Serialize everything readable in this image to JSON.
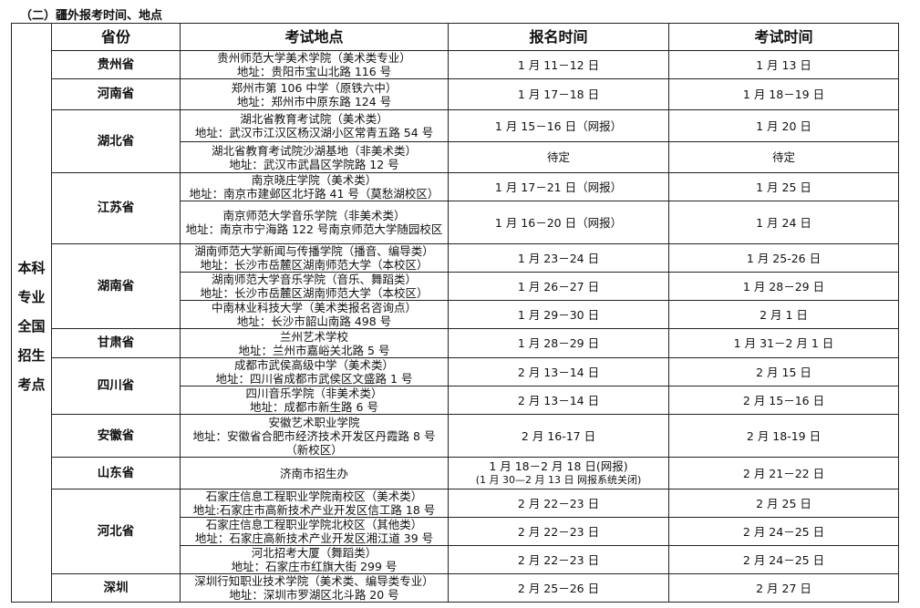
{
  "title": "（二）疆外报考时间、地点",
  "side_label": [
    "本科",
    "专业",
    "全国",
    "招生",
    "考点"
  ],
  "headers": {
    "province": "省份",
    "location": "考试地点",
    "register": "报名时间",
    "exam": "考试时间"
  },
  "regions": [
    {
      "province": "贵州省",
      "sites": [
        {
          "location": [
            "贵州师范大学美术学院（美术类专业）",
            "地址：贵阳市宝山北路 116 号"
          ],
          "register": [
            "1 月 11－12 日"
          ],
          "exam": "1 月 13 日"
        }
      ]
    },
    {
      "province": "河南省",
      "sites": [
        {
          "location": [
            "郑州市第 106 中学（原铁六中）",
            "地址：郑州市中原东路 124 号"
          ],
          "register": [
            "1 月 17－18 日"
          ],
          "exam": "1 月 18－19 日"
        }
      ]
    },
    {
      "province": "湖北省",
      "sites": [
        {
          "location": [
            "湖北省教育考试院（美术类）",
            "地址：武汉市江汉区杨汉湖小区常青五路 54 号"
          ],
          "register": [
            "1 月 15－16 日（网报）"
          ],
          "exam": "1 月 20 日"
        },
        {
          "location": [
            "湖北省教育考试院沙湖基地（非美术类）",
            "地址：武汉市武昌区学院路 12 号"
          ],
          "register": [
            "待定"
          ],
          "exam": "待定"
        }
      ]
    },
    {
      "province": "江苏省",
      "sites": [
        {
          "location": [
            "南京晓庄学院（美术类）",
            "地址：南京市建邺区北圩路 41 号（莫愁湖校区）"
          ],
          "register": [
            "1 月 17－21 日（网报）"
          ],
          "exam": "1 月 25 日"
        },
        {
          "location": [
            "南京师范大学音乐学院（非美术类）",
            "地址：南京市宁海路 122 号南京师范大学随园校区"
          ],
          "register": [
            "1 月 16－20 日（网报）"
          ],
          "exam": "1 月 24 日"
        }
      ]
    },
    {
      "province": "湖南省",
      "sites": [
        {
          "location": [
            "湖南师范大学新闻与传播学院（播音、编导类）",
            "地址：长沙市岳麓区湖南师范大学（本校区）"
          ],
          "register": [
            "1 月 23－24 日"
          ],
          "exam": "1 月 25-26 日"
        },
        {
          "location": [
            "湖南师范大学音乐学院（音乐、舞蹈类）",
            "地址：长沙市岳麓区湖南师范大学（本校区）"
          ],
          "register": [
            "1 月 26－27 日"
          ],
          "exam": "1 月 28－29 日"
        },
        {
          "location": [
            "中南林业科技大学（美术类报名咨询点）",
            "地址：长沙市韶山南路 498 号"
          ],
          "register": [
            "1 月 29－30 日"
          ],
          "exam": "2 月 1 日"
        }
      ]
    },
    {
      "province": "甘肃省",
      "sites": [
        {
          "location": [
            "兰州艺术学校",
            "地址：兰州市嘉峪关北路 5 号"
          ],
          "register": [
            "1 月 28－29 日"
          ],
          "exam": "1 月 31－2 月 1 日"
        }
      ]
    },
    {
      "province": "四川省",
      "sites": [
        {
          "location": [
            "成都市武侯高级中学（美术类）",
            "地址：四川省成都市武侯区文盛路 1 号"
          ],
          "register": [
            "2 月 13－14 日"
          ],
          "exam": "2 月 15 日"
        },
        {
          "location": [
            "四川音乐学院（非美术类）",
            "地址：成都市新生路 6 号"
          ],
          "register": [
            "2 月 13－14 日"
          ],
          "exam": "2 月 15－16 日"
        }
      ]
    },
    {
      "province": "安徽省",
      "sites": [
        {
          "location": [
            "安徽艺术职业学院",
            "地址：安徽省合肥市经济技术开发区丹霞路 8 号（新校区）"
          ],
          "register": [
            "2 月 16-17 日"
          ],
          "exam": "2 月 18-19 日"
        }
      ]
    },
    {
      "province": "山东省",
      "sites": [
        {
          "location": [
            "济南市招生办"
          ],
          "register": [
            "1 月 18－2 月 18 日(网报)",
            "(1 月 30—2 月 13 日 网报系统关闭)"
          ],
          "exam": "2 月 21－22 日"
        }
      ]
    },
    {
      "province": "河北省",
      "sites": [
        {
          "location": [
            "石家庄信息工程职业学院南校区（美术类）",
            "地址:石家庄市高新技术产业开发区信工路 18 号"
          ],
          "register": [
            "2 月 22－23 日"
          ],
          "exam": "2 月 25 日"
        },
        {
          "location": [
            "石家庄信息工程职业学院北校区（其他类）",
            "地址：石家庄高新技术产业开发区湘江道 39 号"
          ],
          "register": [
            "2 月 22－23 日"
          ],
          "exam": "2 月 24－25 日"
        },
        {
          "location": [
            "河北招考大厦（舞蹈类）",
            "地址：石家庄市红旗大街 299 号"
          ],
          "register": [
            "2 月 22－23 日"
          ],
          "exam": "2 月 24－25 日"
        }
      ]
    },
    {
      "province": "深圳",
      "sites": [
        {
          "location": [
            "深圳行知职业技术学院（美术类、编导类专业）",
            "地址：深圳市罗湖区北斗路 20 号"
          ],
          "register": [
            "2 月 25－26 日"
          ],
          "exam": "2 月 27 日"
        }
      ]
    }
  ]
}
